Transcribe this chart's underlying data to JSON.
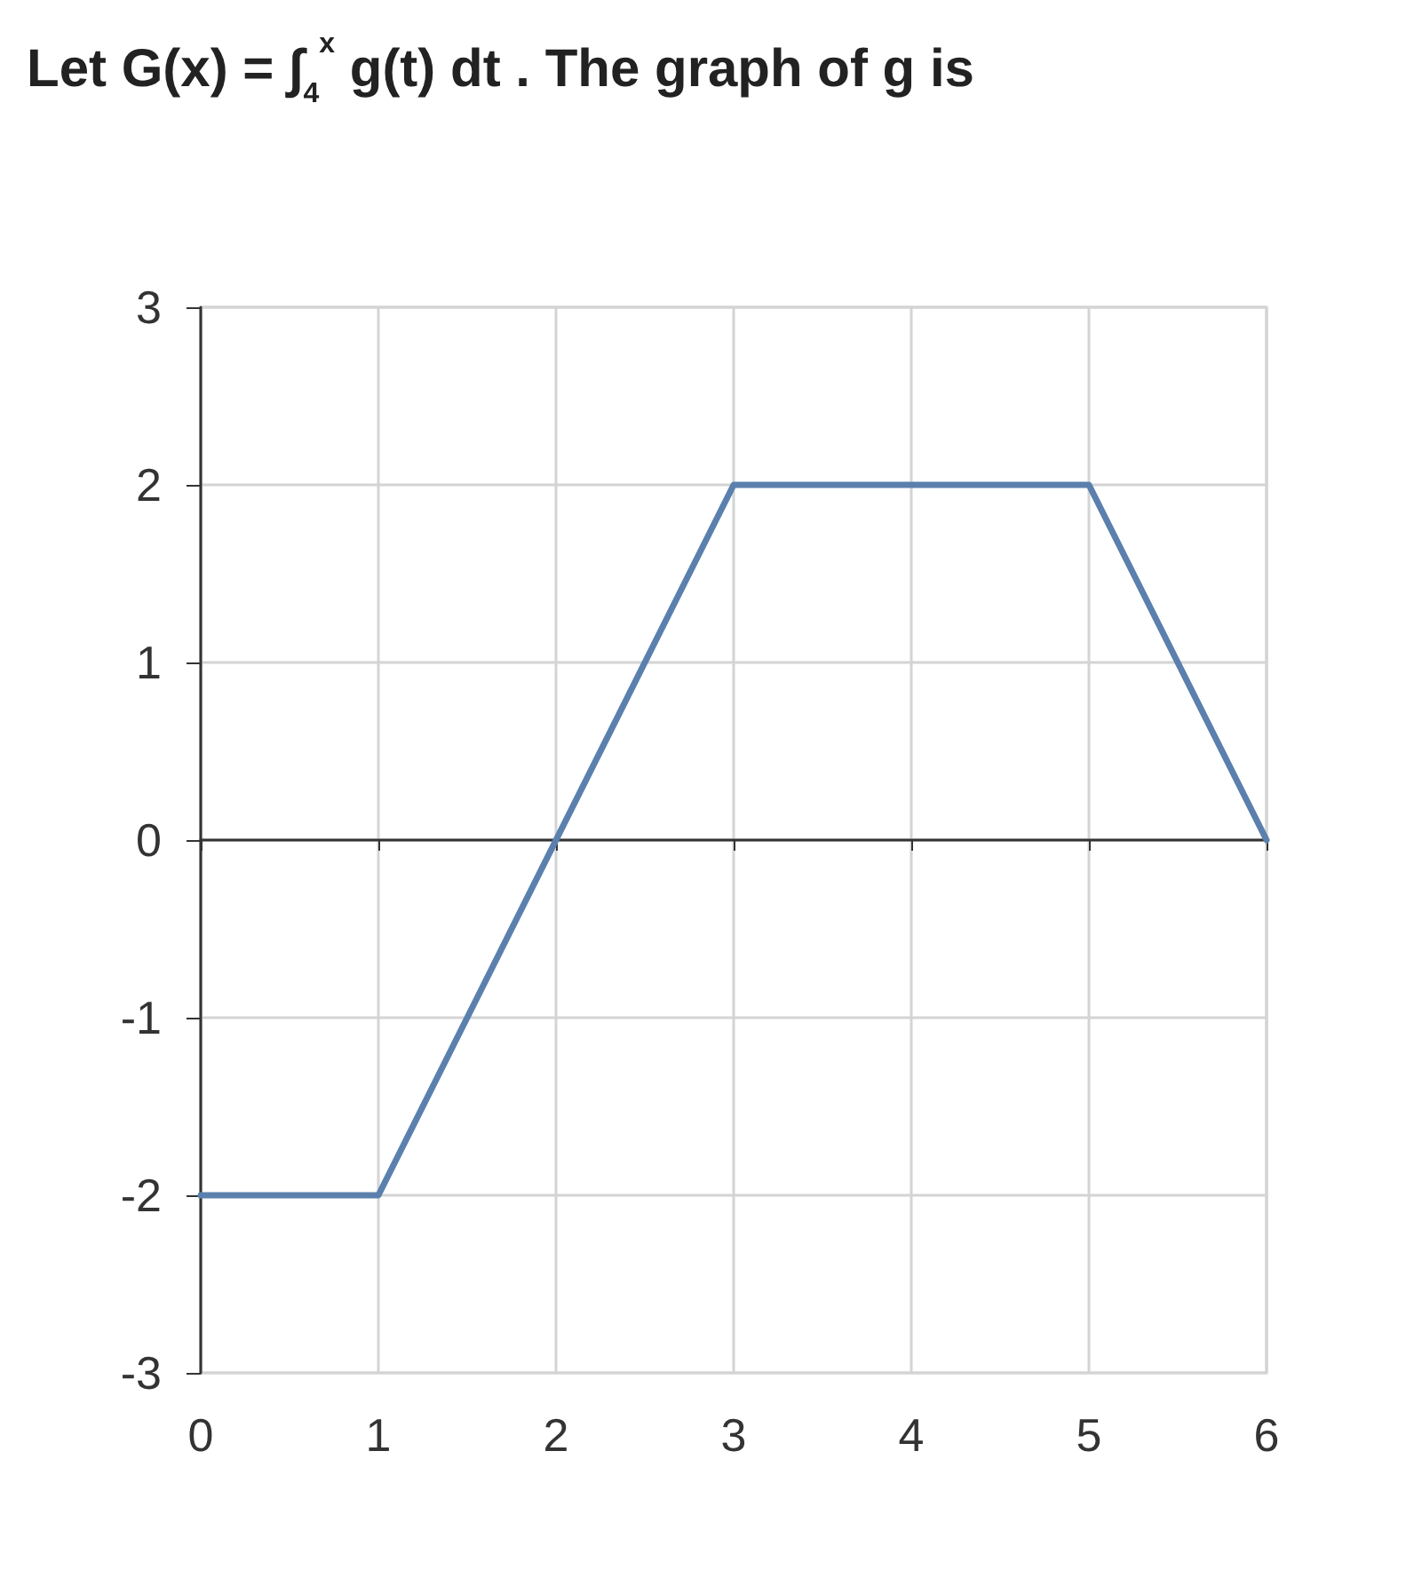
{
  "chart_data": {
    "type": "line",
    "title": "Let G(x) = ∫$_{4}$$^{x}$ g(t) dt . The graph of g is",
    "x": [
      0,
      1,
      3,
      5,
      6
    ],
    "series": [
      {
        "color": "#5b80ad",
        "values": [
          -2,
          -2,
          2,
          2,
          0
        ]
      }
    ],
    "xlim": [
      0,
      6
    ],
    "xticks": [
      0,
      1,
      2,
      3,
      4,
      5,
      6
    ],
    "ylim": [
      -3,
      3
    ],
    "yticks": [
      -3,
      -2,
      -1,
      0,
      1,
      2,
      3
    ],
    "grid": true,
    "marker": "none",
    "line_style": "solid"
  }
}
